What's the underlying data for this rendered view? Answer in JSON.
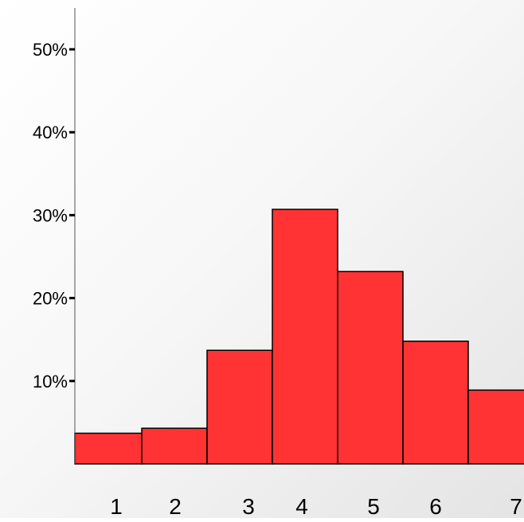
{
  "chart_data": {
    "type": "bar",
    "categories": [
      "1",
      "2",
      "3",
      "4",
      "5",
      "6",
      "7"
    ],
    "values": [
      3.7,
      4.3,
      13.7,
      30.7,
      23.2,
      14.8,
      8.9
    ],
    "y_ticks": [
      10,
      20,
      30,
      40,
      50
    ],
    "y_tick_labels": [
      "10%",
      "20%",
      "30%",
      "40%",
      "50%"
    ],
    "ylim": [
      0,
      55
    ],
    "title": "",
    "xlabel": "",
    "ylabel": "",
    "bar_color": "#ff3333",
    "bar_edge_color": "#000000",
    "grid": false,
    "legend": "none"
  }
}
